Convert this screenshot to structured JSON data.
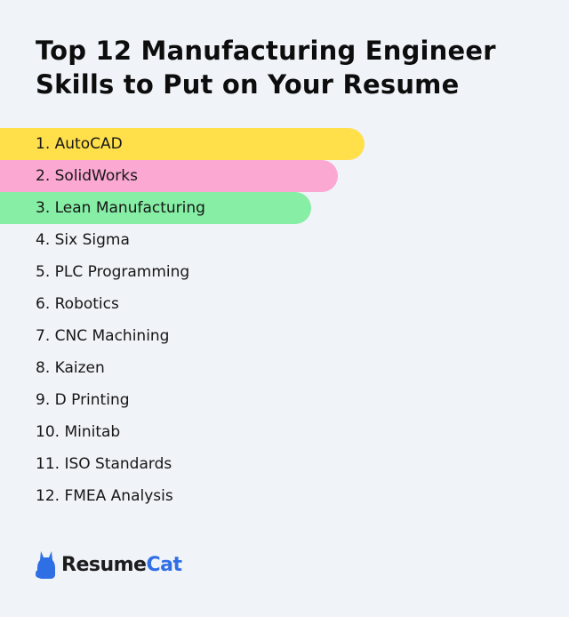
{
  "title_line1": "Top 12 Manufacturing Engineer",
  "title_line2": "Skills to Put on Your Resume",
  "skills": [
    "1. AutoCAD",
    "2. SolidWorks",
    "3. Lean Manufacturing",
    "4. Six Sigma",
    "5. PLC Programming",
    "6. Robotics",
    "7. CNC Machining",
    "8. Kaizen",
    "9. D Printing",
    "10. Minitab",
    "11. ISO Standards",
    "12. FMEA Analysis"
  ],
  "highlight_colors": [
    "#ffe04b",
    "#fba8d3",
    "#86eea5"
  ],
  "logo": {
    "part1": "Resume",
    "part2": "Cat",
    "icon": "cat-icon",
    "brand_color": "#2f6fe6"
  }
}
